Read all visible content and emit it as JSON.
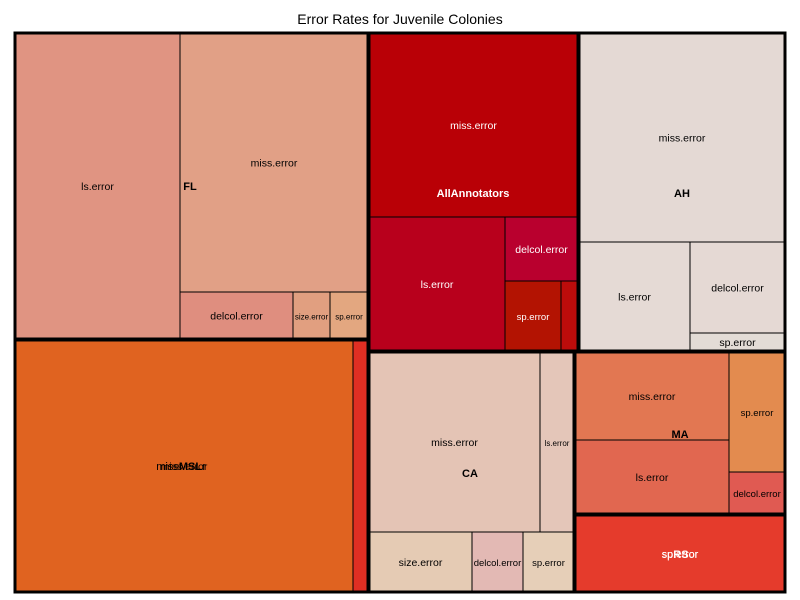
{
  "chart_data": {
    "type": "treemap",
    "title": "Error Rates for Juvenile Colonies",
    "groups": [
      {
        "name": "FL",
        "children": [
          {
            "name": "ls.error",
            "color": "#e09482"
          },
          {
            "name": "miss.error",
            "color": "#e1a086"
          },
          {
            "name": "delcol.error",
            "color": "#df8e7f"
          },
          {
            "name": "size.error",
            "color": "#e19f80"
          },
          {
            "name": "sp.error",
            "color": "#e3a780"
          }
        ]
      },
      {
        "name": "AllAnnotators",
        "children": [
          {
            "name": "miss.error",
            "color": "#b90006"
          },
          {
            "name": "ls.error",
            "color": "#b8001c"
          },
          {
            "name": "delcol.error",
            "color": "#b9002e"
          },
          {
            "name": "sp.error",
            "color": "#b31302"
          },
          {
            "name": "",
            "color": "#bc0c0b"
          }
        ]
      },
      {
        "name": "AH",
        "children": [
          {
            "name": "miss.error",
            "color": "#e4d9d4"
          },
          {
            "name": "ls.error",
            "color": "#e5dad5"
          },
          {
            "name": "delcol.error",
            "color": "#e5d9d4"
          },
          {
            "name": "sp.error",
            "color": "#e3dcd6"
          }
        ]
      },
      {
        "name": "MSL",
        "label_parts": [
          "miss",
          "MSL",
          "r"
        ],
        "children": [
          {
            "name": "miss.error",
            "color": "#e06320"
          },
          {
            "name": "",
            "color": "#df2f23"
          }
        ]
      },
      {
        "name": "CA",
        "children": [
          {
            "name": "miss.error",
            "color": "#e4c4b5"
          },
          {
            "name": "ls.error",
            "color": "#e4c6b9"
          },
          {
            "name": "size.error",
            "color": "#e5cbb4"
          },
          {
            "name": "delcol.error",
            "color": "#e3b9b4"
          },
          {
            "name": "sp.error",
            "color": "#e6cfb8"
          }
        ]
      },
      {
        "name": "MA",
        "children": [
          {
            "name": "miss.error",
            "color": "#e27752"
          },
          {
            "name": "sp.error",
            "color": "#e38b4f"
          },
          {
            "name": "ls.error",
            "color": "#e16750"
          },
          {
            "name": "delcol.error",
            "color": "#e05a52"
          }
        ]
      },
      {
        "name": "RS",
        "label_parts": [
          "sp",
          "RS",
          "or"
        ],
        "children": [
          {
            "name": "sp.error",
            "color": "#e53b2c"
          }
        ]
      }
    ]
  }
}
